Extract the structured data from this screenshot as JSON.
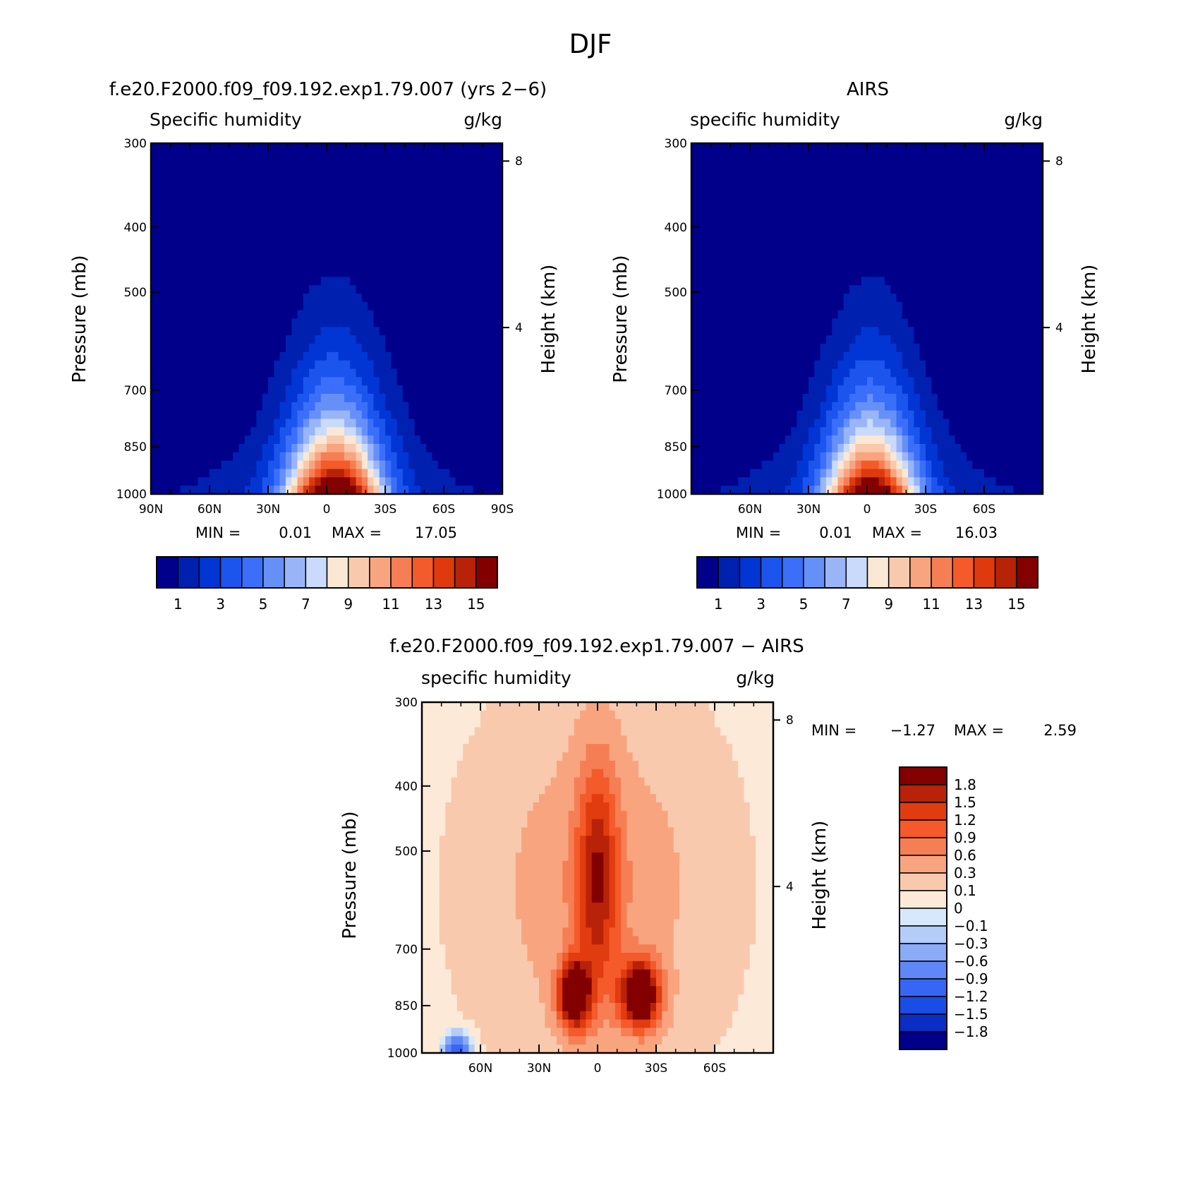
{
  "figure": {
    "title": "DJF",
    "colors": {
      "abs_scale": [
        "#00008b",
        "#0020b0",
        "#0236d4",
        "#1c54ee",
        "#3b6ffa",
        "#6590f8",
        "#99b5f8",
        "#c9dafa",
        "#fae8d4",
        "#f9c9ae",
        "#f8a57f",
        "#f67e55",
        "#f45a2a",
        "#de3a0e",
        "#b82208",
        "#830000"
      ],
      "diff_scale": [
        "#830000",
        "#b82208",
        "#e03c10",
        "#f45a2a",
        "#f67e55",
        "#f8a57f",
        "#f9c9ae",
        "#fde9d8",
        "#d8e8fb",
        "#b4ccf8",
        "#8aabf6",
        "#5f87f6",
        "#3766f4",
        "#1a4ce6",
        "#0a2ec4",
        "#00008b"
      ]
    }
  },
  "chart_data": [
    {
      "type": "heatmap",
      "title": "f.e20.F2000.f09_f09.192.exp1.79.007 (yrs 2−6)",
      "subtitle_left": "Specific humidity",
      "subtitle_right": "g/kg",
      "ylabel": "Pressure (mb)",
      "ylabel_right": "Height (km)",
      "x_ticks": [
        "90N",
        "60N",
        "30N",
        "0",
        "30S",
        "60S",
        "90S"
      ],
      "y_ticks": [
        "300",
        "400",
        "500",
        "700",
        "850",
        "1000"
      ],
      "y_right_ticks": [
        "8",
        "4"
      ],
      "min_label": "MIN =",
      "min_value": "0.01",
      "max_label": "MAX =",
      "max_value": "17.05",
      "ylim": [
        1000,
        300
      ],
      "xlim": [
        90,
        -90
      ],
      "colorbar_ticks": [
        "1",
        "3",
        "5",
        "7",
        "9",
        "11",
        "13",
        "15"
      ],
      "field": {
        "peak": 17.05,
        "center_lat": -4,
        "width_lat": 24
      }
    },
    {
      "type": "heatmap",
      "title": "AIRS",
      "subtitle_left": "specific humidity",
      "subtitle_right": "g/kg",
      "ylabel": "Pressure (mb)",
      "ylabel_right": "Height (km)",
      "x_ticks": [
        "60N",
        "30N",
        "0",
        "30S",
        "60S"
      ],
      "y_ticks": [
        "300",
        "400",
        "500",
        "700",
        "850",
        "1000"
      ],
      "y_right_ticks": [
        "8",
        "4"
      ],
      "min_label": "MIN =",
      "min_value": "0.01",
      "max_label": "MAX =",
      "max_value": "16.03",
      "ylim": [
        1000,
        300
      ],
      "xlim": [
        90,
        -90
      ],
      "colorbar_ticks": [
        "1",
        "3",
        "5",
        "7",
        "9",
        "11",
        "13",
        "15"
      ],
      "field": {
        "peak": 16.03,
        "center_lat": -2,
        "width_lat": 23
      }
    },
    {
      "type": "heatmap",
      "title": "f.e20.F2000.f09_f09.192.exp1.79.007 − AIRS",
      "subtitle_left": "specific humidity",
      "subtitle_right": "g/kg",
      "ylabel": "Pressure (mb)",
      "ylabel_right": "Height (km)",
      "x_ticks": [
        "60N",
        "30N",
        "0",
        "30S",
        "60S"
      ],
      "y_ticks": [
        "300",
        "400",
        "500",
        "700",
        "850",
        "1000"
      ],
      "y_right_ticks": [
        "8",
        "4"
      ],
      "min_label": "MIN =",
      "min_value": "−1.27",
      "max_label": "MAX =",
      "max_value": "2.59",
      "ylim": [
        1000,
        300
      ],
      "xlim": [
        90,
        -90
      ],
      "colorbar_ticks": [
        "1.8",
        "1.5",
        "1.2",
        "0.9",
        "0.6",
        "0.3",
        "0.1",
        "0",
        "−0.1",
        "−0.3",
        "−0.6",
        "−0.9",
        "−1.2",
        "−1.5",
        "−1.8"
      ]
    }
  ]
}
